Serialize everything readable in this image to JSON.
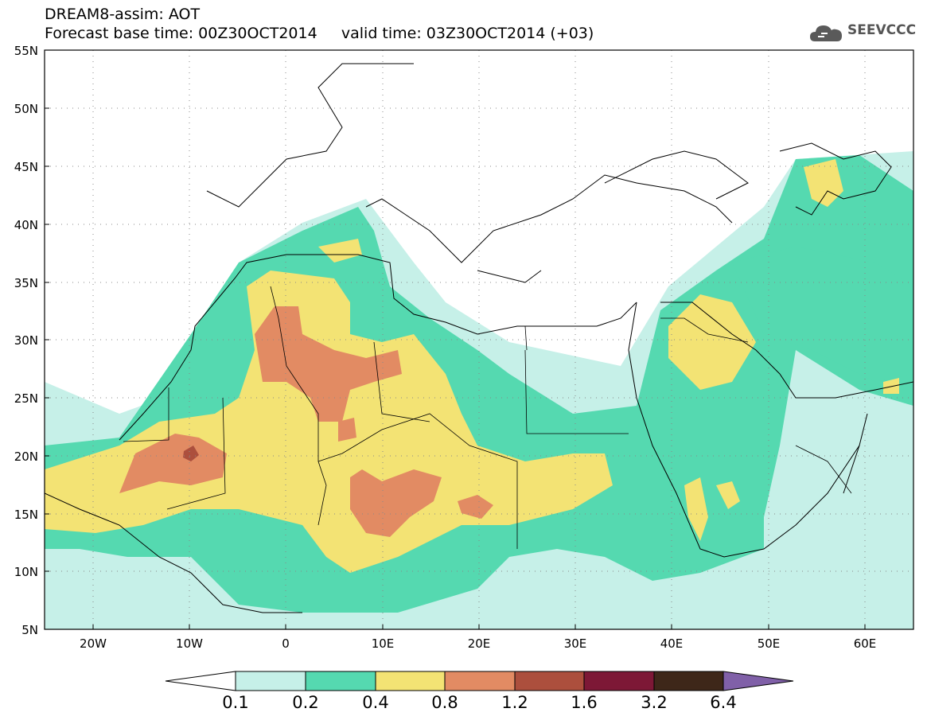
{
  "header": {
    "title_line1": "DREAM8-assim: AOT",
    "title_line2": "Forecast base time: 00Z30OCT2014     valid time: 03Z30OCT2014 (+03)"
  },
  "logo": {
    "text": "SEEVCCC",
    "icon": "cloud-icon",
    "color": "#5a5a5a"
  },
  "map": {
    "lat_range": [
      5,
      55
    ],
    "lon_range": [
      -25,
      65
    ],
    "lat_labels": [
      "55N",
      "50N",
      "45N",
      "40N",
      "35N",
      "30N",
      "25N",
      "20N",
      "15N",
      "10N",
      "5N"
    ],
    "lon_labels": [
      "20W",
      "10W",
      "0",
      "10E",
      "20E",
      "30E",
      "40E",
      "50E",
      "60E"
    ],
    "gridlines": "dotted"
  },
  "colorbar": {
    "labels": [
      "0.1",
      "0.2",
      "0.4",
      "0.8",
      "1.2",
      "1.6",
      "3.2",
      "6.4"
    ],
    "colors": [
      "#c6f0e8",
      "#55d9b0",
      "#f3e374",
      "#e28b63",
      "#ac4f3d",
      "#7d1836",
      "#3e2719",
      "#8060a8"
    ]
  }
}
